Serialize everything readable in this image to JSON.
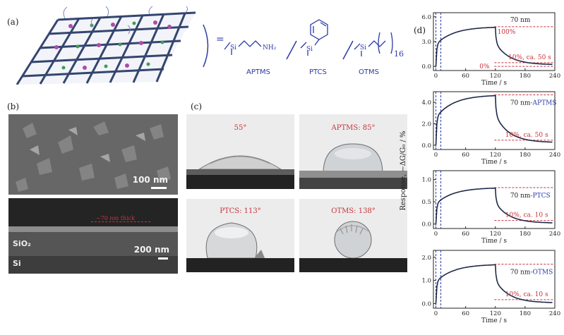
{
  "panels": {
    "a": {
      "label": "(a)",
      "molecules": [
        {
          "name": "APTMS",
          "group": "NH₂"
        },
        {
          "name": "PTCS",
          "group": ""
        },
        {
          "name": "OTMS",
          "group": "16"
        }
      ],
      "si": "Si",
      "equals": "="
    },
    "b": {
      "label": "(b)",
      "scale_top": "100 nm",
      "scale_bottom": "200 nm",
      "thick": "~70 nm thick",
      "sio2": "SiO₂",
      "si": "Si"
    },
    "c": {
      "label": "(c)",
      "angles": [
        "55°",
        "APTMS: 85°",
        "PTCS: 113°",
        "OTMS: 138°"
      ]
    },
    "d": {
      "label": "(d)",
      "ylabel": "Response, −ΔG/G₀ / %"
    }
  },
  "colors": {
    "curve": "#1e2a4a",
    "dashred": "#c8343a",
    "dashblue": "#2b3aa8",
    "redtext": "#c8343a",
    "bluetext": "#2b3aa8"
  },
  "chart_data": [
    {
      "type": "line",
      "title": "70 nm",
      "xlabel": "Time / s",
      "xlim": [
        -5,
        240
      ],
      "xticks": [
        0,
        60,
        120,
        180,
        240
      ],
      "ylim": [
        -0.5,
        6.5
      ],
      "yticks": [
        "0.0",
        "3.0",
        "6.0"
      ],
      "ytickvals": [
        0,
        3,
        6
      ],
      "plateau": 4.8,
      "recovery": 0.2,
      "refs": [
        4.8,
        0.45,
        0.0
      ],
      "annotations": [
        "100%",
        "10%, ca. 50 s",
        "0%"
      ]
    },
    {
      "type": "line",
      "title": "70 nm-APTMS",
      "xlabel": "Time / s",
      "xlim": [
        -5,
        240
      ],
      "xticks": [
        0,
        60,
        120,
        180,
        240
      ],
      "ylim": [
        -0.4,
        5.0
      ],
      "yticks": [
        "0.0",
        "2.0",
        "4.0"
      ],
      "ytickvals": [
        0,
        2,
        4
      ],
      "plateau": 4.7,
      "recovery": 0.25,
      "refs": [
        4.7,
        0.47
      ],
      "annotations": [
        "10%, ca. 50 s"
      ]
    },
    {
      "type": "line",
      "title": "70 nm-PTCS",
      "xlabel": "Time / s",
      "xlim": [
        -5,
        240
      ],
      "xticks": [
        0,
        60,
        120,
        180,
        240
      ],
      "ylim": [
        -0.1,
        1.2
      ],
      "yticks": [
        "0.0",
        "0.5",
        "1.0"
      ],
      "ytickvals": [
        0,
        0.5,
        1
      ],
      "plateau": 0.82,
      "recovery": 0.02,
      "refs": [
        0.82,
        0.08
      ],
      "annotations": [
        "10%, ca. 10 s"
      ]
    },
    {
      "type": "line",
      "title": "70 nm-OTMS",
      "xlabel": "Time / s",
      "xlim": [
        -5,
        240
      ],
      "xticks": [
        0,
        60,
        120,
        180,
        240
      ],
      "ylim": [
        -0.2,
        2.3
      ],
      "yticks": [
        "0.0",
        "1.0",
        "2.0"
      ],
      "ytickvals": [
        0,
        1,
        2
      ],
      "plateau": 1.7,
      "recovery": 0.03,
      "refs": [
        1.7,
        0.17
      ],
      "annotations": [
        "10%, ca. 10 s"
      ]
    }
  ]
}
